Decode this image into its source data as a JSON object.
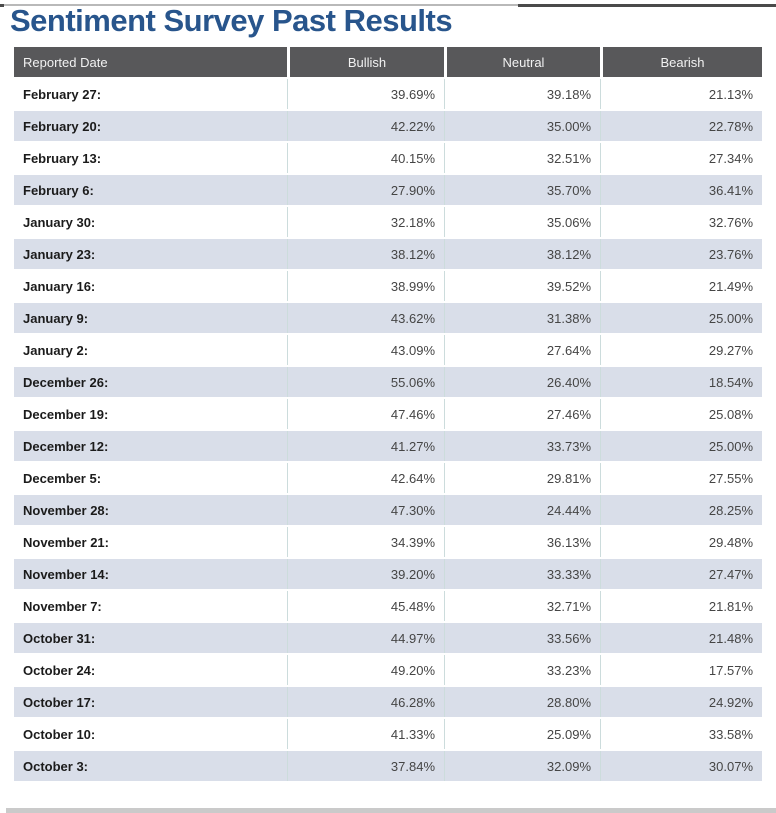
{
  "page": {
    "title": "Sentiment Survey Past Results"
  },
  "colors": {
    "title": "#28558C",
    "header_bg": "#58585A",
    "alt_row_bg": "#D9DEE9",
    "scrollbar": "#CACACA"
  },
  "table": {
    "columns": [
      "Reported Date",
      "Bullish",
      "Neutral",
      "Bearish"
    ],
    "rows": [
      {
        "date": "February 27:",
        "bullish": "39.69%",
        "neutral": "39.18%",
        "bearish": "21.13%"
      },
      {
        "date": "February 20:",
        "bullish": "42.22%",
        "neutral": "35.00%",
        "bearish": "22.78%"
      },
      {
        "date": "February 13:",
        "bullish": "40.15%",
        "neutral": "32.51%",
        "bearish": "27.34%"
      },
      {
        "date": "February 6:",
        "bullish": "27.90%",
        "neutral": "35.70%",
        "bearish": "36.41%"
      },
      {
        "date": "January 30:",
        "bullish": "32.18%",
        "neutral": "35.06%",
        "bearish": "32.76%"
      },
      {
        "date": "January 23:",
        "bullish": "38.12%",
        "neutral": "38.12%",
        "bearish": "23.76%"
      },
      {
        "date": "January 16:",
        "bullish": "38.99%",
        "neutral": "39.52%",
        "bearish": "21.49%"
      },
      {
        "date": "January 9:",
        "bullish": "43.62%",
        "neutral": "31.38%",
        "bearish": "25.00%"
      },
      {
        "date": "January 2:",
        "bullish": "43.09%",
        "neutral": "27.64%",
        "bearish": "29.27%"
      },
      {
        "date": "December 26:",
        "bullish": "55.06%",
        "neutral": "26.40%",
        "bearish": "18.54%"
      },
      {
        "date": "December 19:",
        "bullish": "47.46%",
        "neutral": "27.46%",
        "bearish": "25.08%"
      },
      {
        "date": "December 12:",
        "bullish": "41.27%",
        "neutral": "33.73%",
        "bearish": "25.00%"
      },
      {
        "date": "December 5:",
        "bullish": "42.64%",
        "neutral": "29.81%",
        "bearish": "27.55%"
      },
      {
        "date": "November 28:",
        "bullish": "47.30%",
        "neutral": "24.44%",
        "bearish": "28.25%"
      },
      {
        "date": "November 21:",
        "bullish": "34.39%",
        "neutral": "36.13%",
        "bearish": "29.48%"
      },
      {
        "date": "November 14:",
        "bullish": "39.20%",
        "neutral": "33.33%",
        "bearish": "27.47%"
      },
      {
        "date": "November 7:",
        "bullish": "45.48%",
        "neutral": "32.71%",
        "bearish": "21.81%"
      },
      {
        "date": "October 31:",
        "bullish": "44.97%",
        "neutral": "33.56%",
        "bearish": "21.48%"
      },
      {
        "date": "October 24:",
        "bullish": "49.20%",
        "neutral": "33.23%",
        "bearish": "17.57%"
      },
      {
        "date": "October 17:",
        "bullish": "46.28%",
        "neutral": "28.80%",
        "bearish": "24.92%"
      },
      {
        "date": "October 10:",
        "bullish": "41.33%",
        "neutral": "25.09%",
        "bearish": "33.58%"
      },
      {
        "date": "October 3:",
        "bullish": "37.84%",
        "neutral": "32.09%",
        "bearish": "30.07%"
      }
    ]
  }
}
